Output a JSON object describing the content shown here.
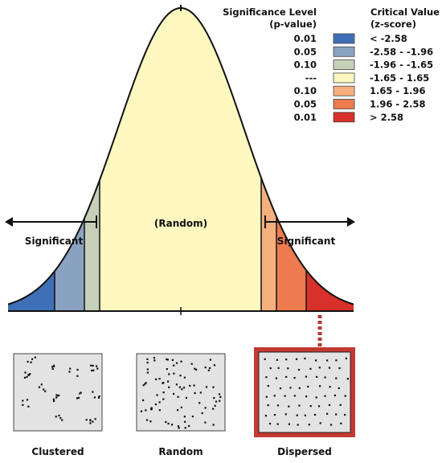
{
  "legend": {
    "sig_header": [
      "Significance Level",
      "(p-value)"
    ],
    "crit_header": [
      "Critical Value",
      "(z-score)"
    ],
    "rows": [
      {
        "p": "0.01",
        "z": "< -2.58",
        "color": "#3f6fb6"
      },
      {
        "p": "0.05",
        "z": "-2.58 - -1.96",
        "color": "#8aa2c2"
      },
      {
        "p": "0.10",
        "z": "-1.96 - -1.65",
        "color": "#c6d0b8"
      },
      {
        "p": "---",
        "z": "-1.65 - 1.65",
        "color": "#fcf8c0"
      },
      {
        "p": "0.10",
        "z": "1.65 - 1.96",
        "color": "#f6b07e"
      },
      {
        "p": "0.05",
        "z": "1.96 - 2.58",
        "color": "#ee7a50"
      },
      {
        "p": "0.01",
        "z": "> 2.58",
        "color": "#d8302a"
      }
    ]
  },
  "curve": {
    "center_label": "(Random)",
    "left_label": "Significant",
    "right_label": "Significant",
    "region_colors": [
      "#3f6fb6",
      "#8aa2c2",
      "#c6d0b8",
      "#fcf8c0",
      "#f6b07e",
      "#ee7a50",
      "#d8302a"
    ],
    "highlight_color": "#b03a32"
  },
  "patterns": [
    {
      "label": "Clustered"
    },
    {
      "label": "Random"
    },
    {
      "label": "Dispersed"
    }
  ]
}
